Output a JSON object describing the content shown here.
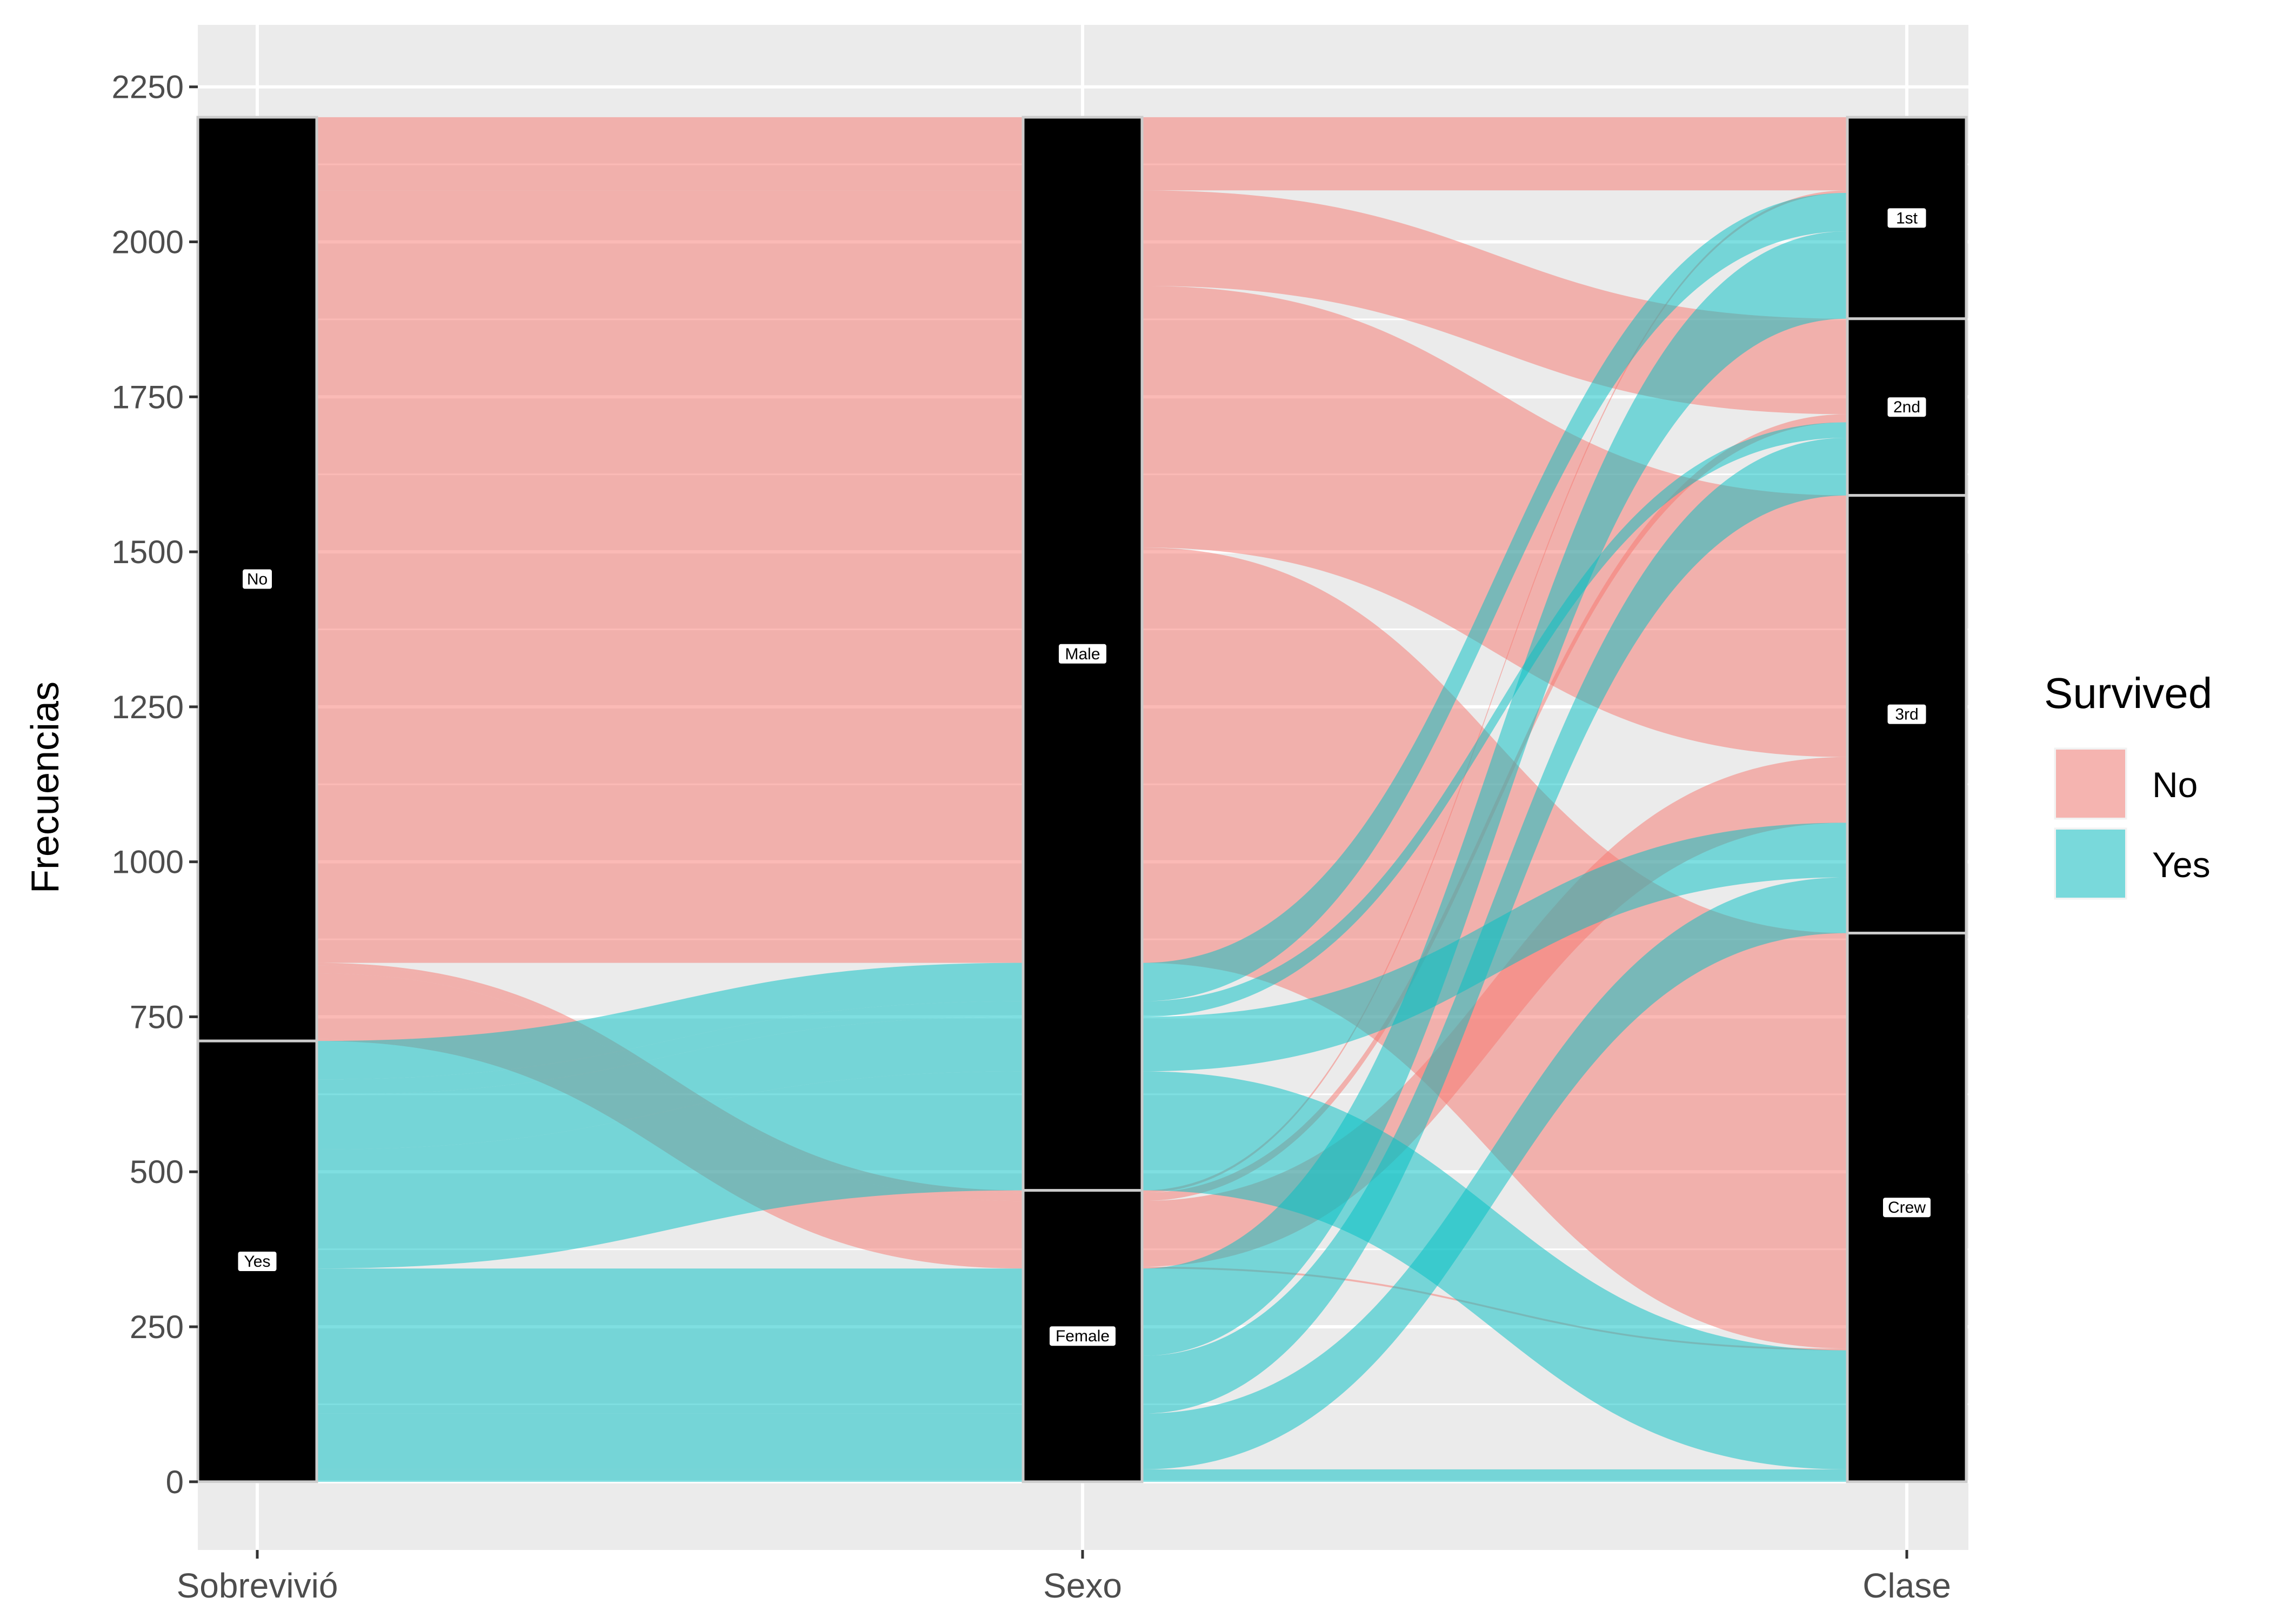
{
  "chart_data": {
    "type": "alluvial",
    "ylabel": "Frecuencias",
    "xlabel": "",
    "ylim": [
      -110,
      2350
    ],
    "y_ticks": [
      0,
      250,
      500,
      750,
      1000,
      1250,
      1500,
      1750,
      2000,
      2250
    ],
    "axes": [
      "Sobrevivió",
      "Sexo",
      "Clase"
    ],
    "legend": {
      "title": "Survived",
      "position": "right",
      "items": [
        {
          "label": "No",
          "color": "#F8766D"
        },
        {
          "label": "Yes",
          "color": "#00BFC4"
        }
      ]
    },
    "strata": {
      "Sobrevivió": [
        {
          "label": "No",
          "value": 1490
        },
        {
          "label": "Yes",
          "value": 711
        }
      ],
      "Sexo": [
        {
          "label": "Male",
          "value": 1731
        },
        {
          "label": "Female",
          "value": 470
        }
      ],
      "Clase": [
        {
          "label": "1st",
          "value": 325
        },
        {
          "label": "2nd",
          "value": 285
        },
        {
          "label": "3rd",
          "value": 706
        },
        {
          "label": "Crew",
          "value": 885
        }
      ]
    },
    "series": [
      {
        "name": "No",
        "values": [
          {
            "sex": "Male",
            "class": "1st",
            "value": 118
          },
          {
            "sex": "Male",
            "class": "2nd",
            "value": 154
          },
          {
            "sex": "Male",
            "class": "3rd",
            "value": 422
          },
          {
            "sex": "Male",
            "class": "Crew",
            "value": 670
          },
          {
            "sex": "Female",
            "class": "1st",
            "value": 4
          },
          {
            "sex": "Female",
            "class": "2nd",
            "value": 13
          },
          {
            "sex": "Female",
            "class": "3rd",
            "value": 106
          },
          {
            "sex": "Female",
            "class": "Crew",
            "value": 3
          }
        ]
      },
      {
        "name": "Yes",
        "values": [
          {
            "sex": "Male",
            "class": "1st",
            "value": 62
          },
          {
            "sex": "Male",
            "class": "2nd",
            "value": 25
          },
          {
            "sex": "Male",
            "class": "3rd",
            "value": 88
          },
          {
            "sex": "Male",
            "class": "Crew",
            "value": 192
          },
          {
            "sex": "Female",
            "class": "1st",
            "value": 141
          },
          {
            "sex": "Female",
            "class": "2nd",
            "value": 93
          },
          {
            "sex": "Female",
            "class": "3rd",
            "value": 90
          },
          {
            "sex": "Female",
            "class": "Crew",
            "value": 20
          }
        ]
      }
    ]
  }
}
